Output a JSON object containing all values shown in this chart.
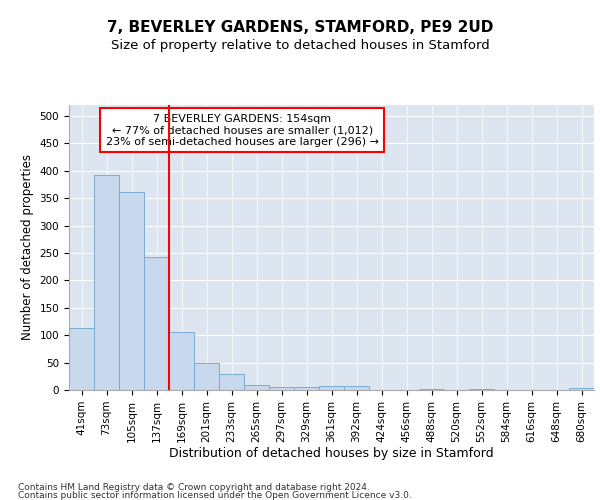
{
  "title1": "7, BEVERLEY GARDENS, STAMFORD, PE9 2UD",
  "title2": "Size of property relative to detached houses in Stamford",
  "xlabel": "Distribution of detached houses by size in Stamford",
  "ylabel": "Number of detached properties",
  "bins": [
    "41sqm",
    "73sqm",
    "105sqm",
    "137sqm",
    "169sqm",
    "201sqm",
    "233sqm",
    "265sqm",
    "297sqm",
    "329sqm",
    "361sqm",
    "392sqm",
    "424sqm",
    "456sqm",
    "488sqm",
    "520sqm",
    "552sqm",
    "584sqm",
    "616sqm",
    "648sqm",
    "680sqm"
  ],
  "values": [
    113,
    393,
    362,
    243,
    105,
    50,
    30,
    10,
    6,
    5,
    7,
    7,
    0,
    0,
    2,
    0,
    2,
    0,
    0,
    0,
    3
  ],
  "bar_color": "#c8d8ed",
  "bar_edge_color": "#7aadd4",
  "vline_color": "red",
  "vline_pos": 3.5,
  "annotation_text": "7 BEVERLEY GARDENS: 154sqm\n← 77% of detached houses are smaller (1,012)\n23% of semi-detached houses are larger (296) →",
  "annotation_box_color": "white",
  "annotation_box_edge": "red",
  "ylim": [
    0,
    520
  ],
  "yticks": [
    0,
    50,
    100,
    150,
    200,
    250,
    300,
    350,
    400,
    450,
    500
  ],
  "background_color": "#dde6f0",
  "footnote1": "Contains HM Land Registry data © Crown copyright and database right 2024.",
  "footnote2": "Contains public sector information licensed under the Open Government Licence v3.0.",
  "title1_fontsize": 11,
  "title2_fontsize": 9.5,
  "xlabel_fontsize": 9,
  "ylabel_fontsize": 8.5,
  "tick_fontsize": 7.5,
  "annotation_fontsize": 8,
  "footnote_fontsize": 6.5
}
